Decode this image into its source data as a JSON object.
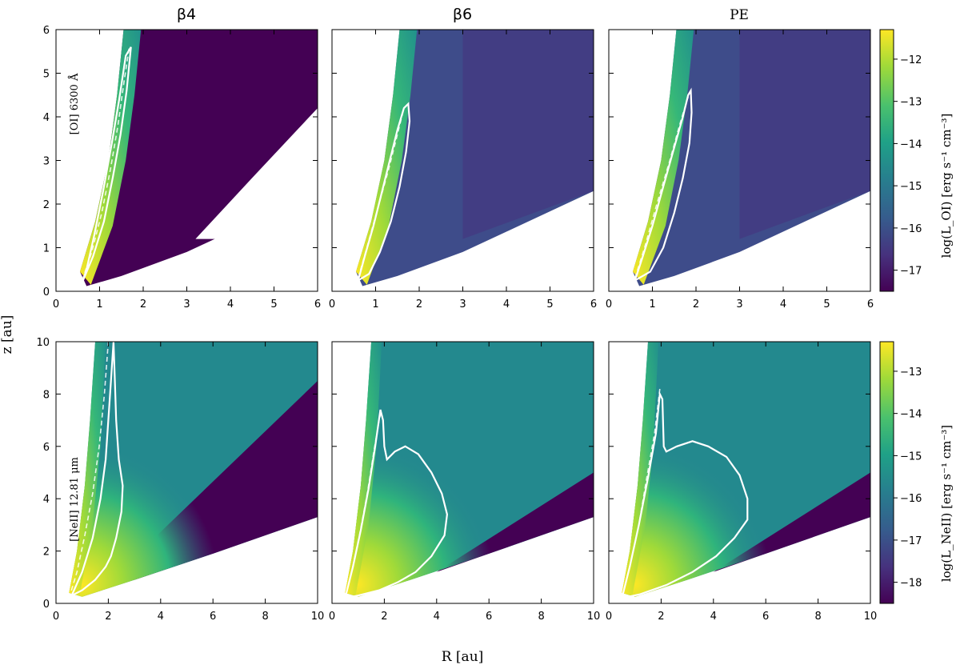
{
  "chart_data": {
    "type": "heatmap",
    "colormap": "viridis",
    "columns": [
      "β4",
      "β6",
      "PE"
    ],
    "xlabel": "R [au]",
    "ylabel": "z [au]",
    "rows": [
      {
        "line_label": "[OI] 6300 Å",
        "colorbar_label": "log(L_OI) [erg s⁻¹ cm⁻³]",
        "colorbar_range": [
          -17.5,
          -11.3
        ],
        "colorbar_ticks": [
          -12,
          -13,
          -14,
          -15,
          -16,
          -17
        ],
        "xlim": [
          0,
          6
        ],
        "ylim": [
          0,
          6
        ],
        "xticks": [
          0,
          1,
          2,
          3,
          4,
          5,
          6
        ],
        "yticks": [
          0,
          1,
          2,
          3,
          4,
          5,
          6
        ]
      },
      {
        "line_label": "[NeII] 12.81 μm",
        "colorbar_label": "log(L_NeII) [erg s⁻¹ cm⁻³]",
        "colorbar_range": [
          -18.5,
          -12.3
        ],
        "colorbar_ticks": [
          -13,
          -14,
          -15,
          -16,
          -17,
          -18
        ],
        "xlim": [
          0,
          10
        ],
        "ylim": [
          0,
          10
        ],
        "xticks": [
          0,
          2,
          4,
          6,
          8,
          10
        ],
        "yticks": [
          0,
          2,
          4,
          6,
          8,
          10
        ]
      }
    ],
    "panels": [
      {
        "row": 0,
        "col": 0,
        "white_contour": [
          [
            0.62,
            0.25
          ],
          [
            0.85,
            0.8
          ],
          [
            1.1,
            1.6
          ],
          [
            1.3,
            2.6
          ],
          [
            1.48,
            3.6
          ],
          [
            1.62,
            4.6
          ],
          [
            1.72,
            5.6
          ],
          [
            1.6,
            5.4
          ],
          [
            1.45,
            4.4
          ],
          [
            1.28,
            3.4
          ],
          [
            1.08,
            2.3
          ],
          [
            0.88,
            1.3
          ],
          [
            0.7,
            0.5
          ],
          [
            0.62,
            0.25
          ]
        ],
        "dashed_contour": [
          [
            0.6,
            0.25
          ],
          [
            0.82,
            0.9
          ],
          [
            1.05,
            1.8
          ],
          [
            1.25,
            2.8
          ],
          [
            1.42,
            3.8
          ],
          [
            1.56,
            4.8
          ],
          [
            1.68,
            5.6
          ]
        ]
      },
      {
        "row": 0,
        "col": 1,
        "white_contour": [
          [
            0.6,
            0.25
          ],
          [
            0.75,
            0.8
          ],
          [
            0.95,
            1.5
          ],
          [
            1.15,
            2.3
          ],
          [
            1.35,
            3.1
          ],
          [
            1.5,
            3.7
          ],
          [
            1.65,
            4.2
          ],
          [
            1.75,
            4.3
          ],
          [
            1.78,
            3.9
          ],
          [
            1.7,
            3.2
          ],
          [
            1.55,
            2.4
          ],
          [
            1.35,
            1.6
          ],
          [
            1.1,
            0.9
          ],
          [
            0.85,
            0.4
          ],
          [
            0.6,
            0.25
          ]
        ],
        "dashed_contour": [
          [
            0.6,
            0.3
          ],
          [
            0.8,
            1.0
          ],
          [
            1.05,
            1.9
          ],
          [
            1.3,
            2.8
          ],
          [
            1.5,
            3.6
          ],
          [
            1.65,
            4.2
          ],
          [
            1.75,
            4.3
          ]
        ]
      },
      {
        "row": 0,
        "col": 2,
        "white_contour": [
          [
            0.6,
            0.25
          ],
          [
            0.78,
            0.8
          ],
          [
            1.0,
            1.5
          ],
          [
            1.25,
            2.4
          ],
          [
            1.5,
            3.3
          ],
          [
            1.7,
            4.0
          ],
          [
            1.82,
            4.5
          ],
          [
            1.88,
            4.6
          ],
          [
            1.9,
            4.1
          ],
          [
            1.85,
            3.4
          ],
          [
            1.7,
            2.6
          ],
          [
            1.5,
            1.8
          ],
          [
            1.25,
            1.0
          ],
          [
            0.95,
            0.45
          ],
          [
            0.6,
            0.25
          ]
        ],
        "dashed_contour": [
          [
            0.6,
            0.3
          ],
          [
            0.82,
            1.0
          ],
          [
            1.1,
            2.0
          ],
          [
            1.4,
            3.0
          ],
          [
            1.62,
            3.8
          ],
          [
            1.8,
            4.4
          ],
          [
            1.88,
            4.6
          ]
        ]
      },
      {
        "row": 1,
        "col": 0,
        "white_contour": [
          [
            0.6,
            0.3
          ],
          [
            1.0,
            1.2
          ],
          [
            1.4,
            2.5
          ],
          [
            1.7,
            4.0
          ],
          [
            1.9,
            5.5
          ],
          [
            2.0,
            7.0
          ],
          [
            2.1,
            8.5
          ],
          [
            2.2,
            10.0
          ],
          [
            2.25,
            8.5
          ],
          [
            2.3,
            7.0
          ],
          [
            2.4,
            5.5
          ],
          [
            2.55,
            4.5
          ],
          [
            2.5,
            3.5
          ],
          [
            2.3,
            2.5
          ],
          [
            2.1,
            1.8
          ],
          [
            1.9,
            1.4
          ],
          [
            1.5,
            0.9
          ],
          [
            1.0,
            0.5
          ],
          [
            0.6,
            0.3
          ]
        ],
        "dashed_contour": [
          [
            0.5,
            0.2
          ],
          [
            0.8,
            1.2
          ],
          [
            1.1,
            2.6
          ],
          [
            1.4,
            4.2
          ],
          [
            1.65,
            6.0
          ],
          [
            1.85,
            8.0
          ],
          [
            2.0,
            10.0
          ]
        ]
      },
      {
        "row": 1,
        "col": 1,
        "white_contour": [
          [
            0.5,
            0.2
          ],
          [
            0.8,
            1.4
          ],
          [
            1.1,
            2.8
          ],
          [
            1.4,
            4.4
          ],
          [
            1.65,
            6.0
          ],
          [
            1.85,
            7.4
          ],
          [
            1.95,
            7.0
          ],
          [
            2.0,
            6.0
          ],
          [
            2.1,
            5.5
          ],
          [
            2.4,
            5.8
          ],
          [
            2.8,
            6.0
          ],
          [
            3.3,
            5.7
          ],
          [
            3.8,
            5.0
          ],
          [
            4.2,
            4.2
          ],
          [
            4.4,
            3.4
          ],
          [
            4.3,
            2.6
          ],
          [
            3.8,
            1.8
          ],
          [
            3.2,
            1.2
          ],
          [
            2.5,
            0.8
          ],
          [
            1.8,
            0.5
          ],
          [
            1.0,
            0.3
          ],
          [
            0.5,
            0.2
          ]
        ],
        "dashed_contour": [
          [
            0.5,
            0.2
          ],
          [
            0.75,
            1.2
          ],
          [
            1.05,
            2.6
          ],
          [
            1.35,
            4.2
          ],
          [
            1.6,
            5.8
          ],
          [
            1.8,
            7.0
          ],
          [
            1.9,
            7.4
          ]
        ]
      },
      {
        "row": 1,
        "col": 2,
        "white_contour": [
          [
            0.5,
            0.2
          ],
          [
            0.8,
            1.4
          ],
          [
            1.15,
            3.0
          ],
          [
            1.5,
            4.8
          ],
          [
            1.8,
            6.5
          ],
          [
            1.95,
            8.0
          ],
          [
            2.05,
            7.8
          ],
          [
            2.1,
            6.0
          ],
          [
            2.2,
            5.8
          ],
          [
            2.6,
            6.0
          ],
          [
            3.2,
            6.2
          ],
          [
            3.8,
            6.0
          ],
          [
            4.5,
            5.6
          ],
          [
            5.0,
            4.9
          ],
          [
            5.3,
            4.0
          ],
          [
            5.3,
            3.2
          ],
          [
            4.8,
            2.5
          ],
          [
            4.1,
            1.8
          ],
          [
            3.2,
            1.2
          ],
          [
            2.2,
            0.7
          ],
          [
            1.2,
            0.35
          ],
          [
            0.5,
            0.2
          ]
        ],
        "dashed_contour": [
          [
            0.5,
            0.2
          ],
          [
            0.8,
            1.4
          ],
          [
            1.15,
            3.0
          ],
          [
            1.45,
            4.8
          ],
          [
            1.75,
            6.5
          ],
          [
            1.95,
            8.2
          ]
        ]
      }
    ]
  }
}
